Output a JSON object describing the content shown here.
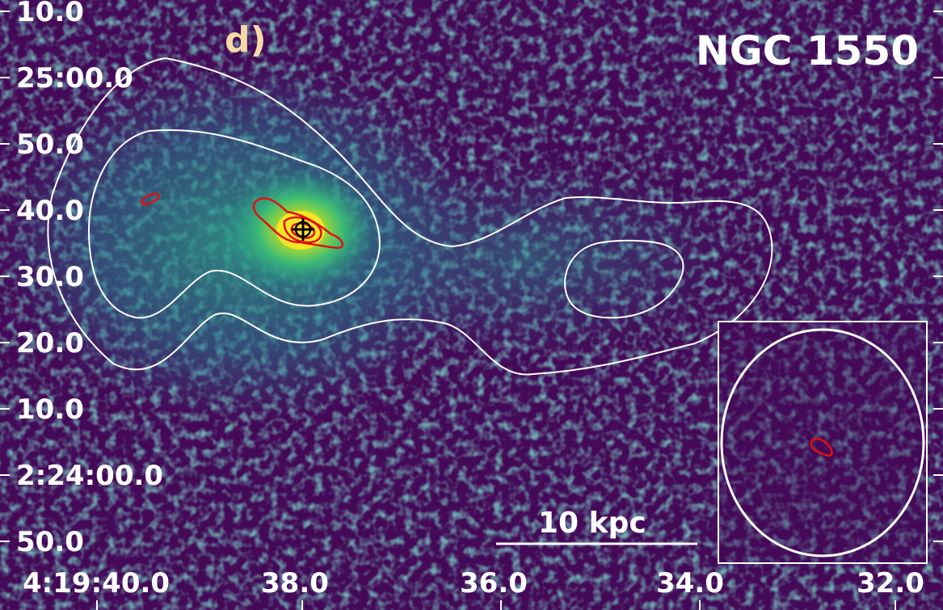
{
  "panel_label": "d)",
  "object_name": "NGC 1550",
  "scale_bar_label": "10 kpc",
  "dec_tick_labels": [
    "10.0",
    "25:00.0",
    "50.0",
    "40.0",
    "30.0",
    "20.0",
    "10.0",
    "2:24:00.0",
    "50.0"
  ],
  "ra_tick_labels": [
    "4:19:40.0",
    "38.0",
    "36.0",
    "34.0",
    "32.0"
  ],
  "colors": {
    "background": "#440a58",
    "white_contours": "#ffffff",
    "red_contours": "#e01010",
    "core_marker": "#000000",
    "panel_label": "#f7d9a8",
    "text": "#ffffff"
  },
  "icons": {
    "core_marker": "crosshair-plus-circle-icon"
  }
}
